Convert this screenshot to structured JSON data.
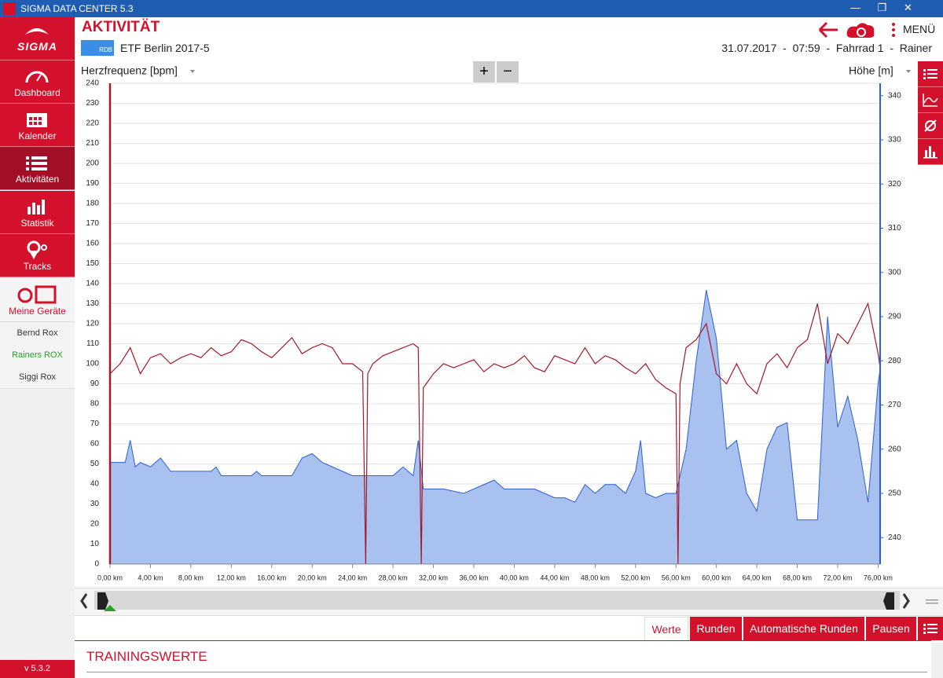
{
  "app": {
    "window_title": "SIGMA DATA CENTER 5.3",
    "logo": "SIGMA",
    "nav": [
      "Dashboard",
      "Kalender",
      "Aktivitäten",
      "Statistik",
      "Tracks",
      "Meine Geräte"
    ],
    "devices": [
      "Bernd Rox",
      "Rainers ROX",
      "Siggi Rox"
    ],
    "version": "v 5.3.2",
    "page_title": "AKTIVITÄT",
    "sport_badge": "RDB",
    "activity_name": "ETF Berlin 2017-5",
    "header_info": "31.07.2017  -  07:59  -  Fahrrad 1  -  Rainer",
    "menu": "MENÜ",
    "zoom": [
      "+",
      "−"
    ],
    "tabs": [
      "Werte",
      "Runden",
      "Automatische Runden",
      "Pausen"
    ],
    "section_title": "TRAININGSWERTE"
  },
  "chart_data": {
    "type": "line",
    "xlim": [
      0,
      76.2
    ],
    "xticks": [
      {
        "value": 0,
        "label": "0,00 km"
      },
      {
        "value": 4,
        "label": "4,00 km"
      },
      {
        "value": 8,
        "label": "8,00 km"
      },
      {
        "value": 12,
        "label": "12,00 km"
      },
      {
        "value": 16,
        "label": "16,00 km"
      },
      {
        "value": 20,
        "label": "20,00 km"
      },
      {
        "value": 24,
        "label": "24,00 km"
      },
      {
        "value": 28,
        "label": "28,00 km"
      },
      {
        "value": 32,
        "label": "32,00 km"
      },
      {
        "value": 36,
        "label": "36,00 km"
      },
      {
        "value": 40,
        "label": "40,00 km"
      },
      {
        "value": 44,
        "label": "44,00 km"
      },
      {
        "value": 48,
        "label": "48,00 km"
      },
      {
        "value": 52,
        "label": "52,00 km"
      },
      {
        "value": 56,
        "label": "56,00 km"
      },
      {
        "value": 60,
        "label": "60,00 km"
      },
      {
        "value": 64,
        "label": "64,00 km"
      },
      {
        "value": 68,
        "label": "68,00 km"
      },
      {
        "value": 72,
        "label": "72,00 km"
      },
      {
        "value": 76,
        "label": "76,00 km"
      }
    ],
    "ylim": [
      0,
      240
    ],
    "yticks": [
      0,
      10,
      20,
      30,
      40,
      50,
      60,
      70,
      80,
      90,
      100,
      110,
      120,
      130,
      140,
      150,
      160,
      170,
      180,
      190,
      200,
      210,
      220,
      230,
      240
    ],
    "y2lim": [
      234,
      342.8
    ],
    "y2ticks": [
      240,
      250,
      260,
      270,
      280,
      290,
      300,
      310,
      320,
      330,
      340
    ],
    "grid": true,
    "series": [
      {
        "name": "Herzfrequenz [bpm]",
        "color": "#a3182b",
        "type": "line",
        "x": [
          0,
          1,
          2,
          3,
          4,
          5,
          6,
          7,
          8,
          9,
          10,
          11,
          12,
          13,
          14,
          15,
          16,
          17,
          18,
          19,
          20,
          21,
          22,
          23,
          24,
          25,
          25.3,
          25.5,
          26,
          27,
          28,
          29,
          30,
          30.5,
          30.8,
          31,
          32,
          33,
          34,
          35,
          36,
          37,
          38,
          39,
          40,
          41,
          42,
          43,
          44,
          45,
          46,
          47,
          48,
          49,
          50,
          51,
          52,
          53,
          54,
          55,
          56,
          56.2,
          56.4,
          57,
          58,
          59,
          60,
          61,
          62,
          63,
          64,
          65,
          66,
          67,
          68,
          69,
          70,
          71,
          72,
          73,
          74,
          75,
          76,
          76.2
        ],
        "values": [
          95,
          100,
          108,
          95,
          103,
          105,
          100,
          103,
          105,
          103,
          108,
          104,
          106,
          112,
          110,
          106,
          103,
          108,
          113,
          105,
          108,
          110,
          108,
          100,
          100,
          96,
          0,
          95,
          100,
          104,
          106,
          108,
          110,
          108,
          0,
          88,
          95,
          100,
          98,
          100,
          102,
          96,
          100,
          98,
          100,
          104,
          98,
          96,
          104,
          102,
          100,
          108,
          100,
          104,
          102,
          98,
          95,
          100,
          92,
          88,
          85,
          0,
          90,
          108,
          112,
          120,
          95,
          90,
          100,
          90,
          85,
          100,
          105,
          98,
          108,
          112,
          130,
          100,
          115,
          110,
          120,
          130,
          105,
          98
        ]
      },
      {
        "name": "Höhe [m]",
        "color": "#2d5fd1",
        "type": "area",
        "axis": "y2",
        "x": [
          0,
          1.5,
          2,
          2.5,
          3,
          4,
          5,
          6,
          8,
          10,
          10.5,
          11,
          14,
          14.5,
          15,
          18,
          19,
          20,
          21,
          22,
          23,
          24,
          26,
          28,
          29,
          30,
          30.5,
          31,
          33,
          35,
          37,
          38,
          39,
          40,
          42,
          43,
          44,
          45,
          46,
          47,
          48,
          49,
          50,
          51,
          52,
          52.5,
          53,
          54,
          55,
          56,
          57,
          58,
          59,
          60,
          61,
          62,
          63,
          64,
          65,
          66,
          67,
          68,
          70,
          71,
          72,
          73,
          74,
          75,
          76,
          76.2
        ],
        "values": [
          257,
          257,
          262,
          256,
          257,
          256,
          258,
          255,
          255,
          255,
          256,
          254,
          254,
          255,
          254,
          254,
          258,
          259,
          257,
          256,
          255,
          254,
          254,
          254,
          256,
          254,
          262,
          251,
          251,
          250,
          252,
          253,
          251,
          251,
          251,
          250,
          249,
          249,
          248,
          252,
          250,
          252,
          252,
          250,
          255,
          262,
          250,
          249,
          250,
          250,
          260,
          280,
          296,
          285,
          260,
          262,
          250,
          246,
          260,
          265,
          266,
          244,
          244,
          290,
          265,
          272,
          262,
          248,
          275,
          278
        ]
      }
    ]
  }
}
